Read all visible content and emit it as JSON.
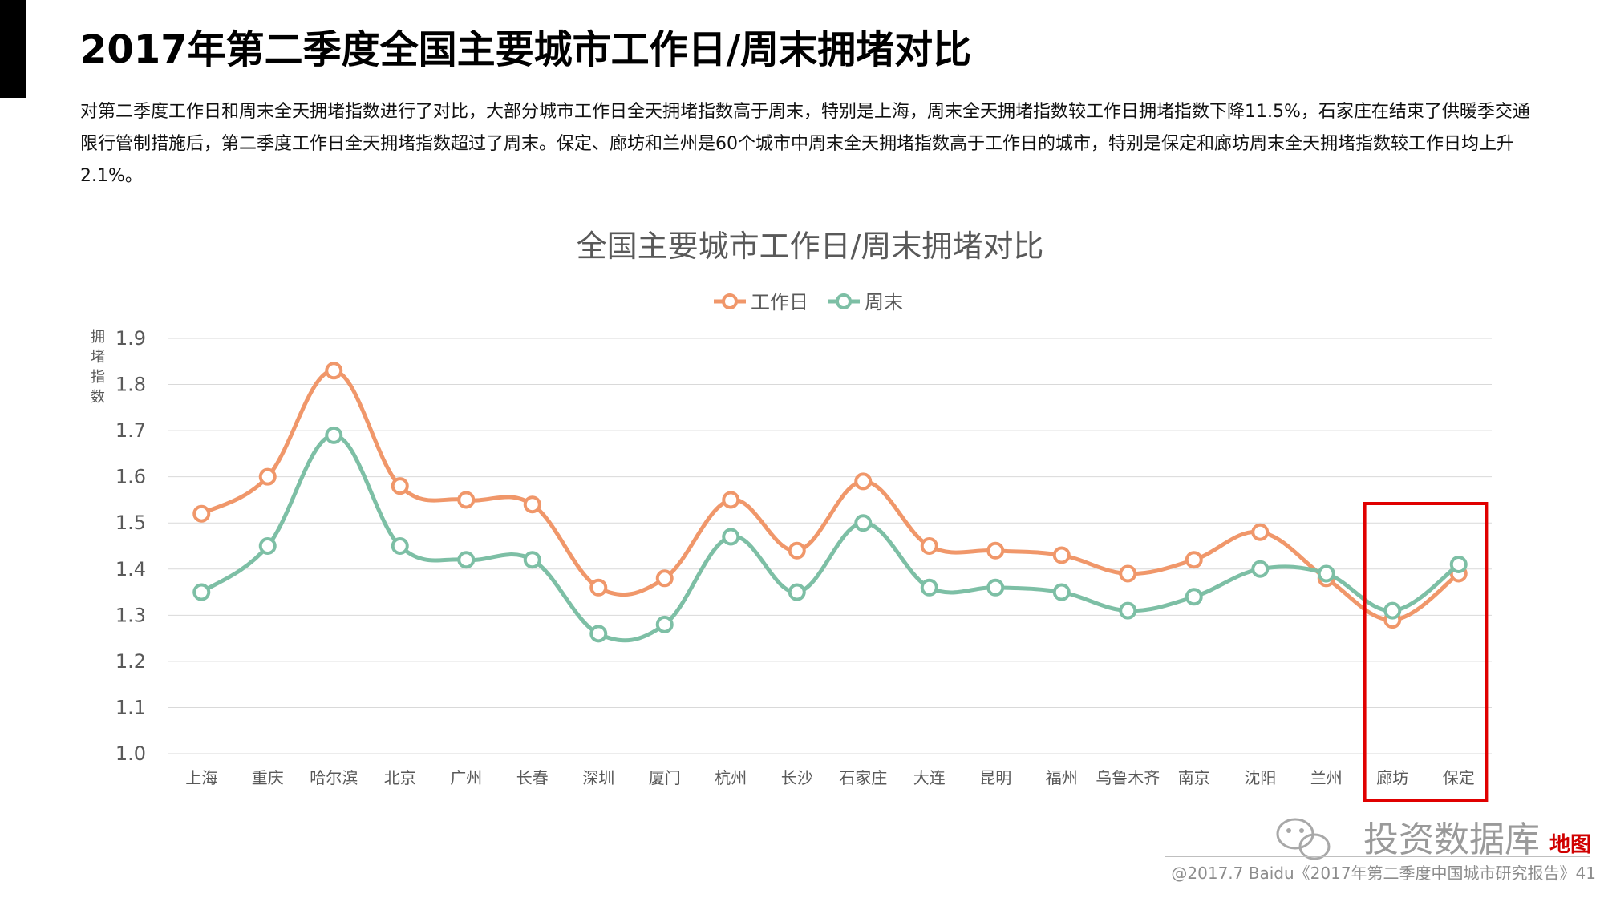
{
  "page": {
    "title": "2017年第二季度全国主要城市工作日/周末拥堵对比",
    "description": "对第二季度工作日和周末全天拥堵指数进行了对比，大部分城市工作日全天拥堵指数高于周末，特别是上海，周末全天拥堵指数较工作日拥堵指数下降11.5%，石家庄在结束了供暖季交通限行管制措施后，第二季度工作日全天拥堵指数超过了周末。保定、廊坊和兰州是60个城市中周末全天拥堵指数高于工作日的城市，特别是保定和廊坊周末全天拥堵指数较工作日均上升2.1%。",
    "footer": "@2017.7 Baidu《2017年第二季度中国城市研究报告》41",
    "watermark": "投资数据库",
    "watermark_brand": "地图"
  },
  "chart_data": {
    "type": "line",
    "title": "全国主要城市工作日/周末拥堵对比",
    "ylabel": "拥堵指数",
    "xlabel": "",
    "categories": [
      "上海",
      "重庆",
      "哈尔滨",
      "北京",
      "广州",
      "长春",
      "深圳",
      "厦门",
      "杭州",
      "长沙",
      "石家庄",
      "大连",
      "昆明",
      "福州",
      "乌鲁木齐",
      "南京",
      "沈阳",
      "兰州",
      "廊坊",
      "保定"
    ],
    "series": [
      {
        "name": "工作日",
        "color": "#F0976A",
        "values": [
          1.52,
          1.6,
          1.83,
          1.58,
          1.55,
          1.54,
          1.36,
          1.38,
          1.55,
          1.44,
          1.59,
          1.45,
          1.44,
          1.43,
          1.39,
          1.42,
          1.48,
          1.38,
          1.29,
          1.39
        ]
      },
      {
        "name": "周末",
        "color": "#7DBFA5",
        "values": [
          1.35,
          1.45,
          1.69,
          1.45,
          1.42,
          1.42,
          1.26,
          1.28,
          1.47,
          1.35,
          1.5,
          1.36,
          1.36,
          1.35,
          1.31,
          1.34,
          1.4,
          1.39,
          1.31,
          1.41
        ]
      }
    ],
    "ylim": [
      1.0,
      1.9
    ],
    "yticks": [
      "1.0",
      "1.1",
      "1.2",
      "1.3",
      "1.4",
      "1.5",
      "1.6",
      "1.7",
      "1.8",
      "1.9"
    ],
    "grid": true,
    "legend_position": "top-center",
    "highlight": {
      "categories": [
        "廊坊",
        "保定"
      ],
      "color": "#E00000"
    }
  }
}
